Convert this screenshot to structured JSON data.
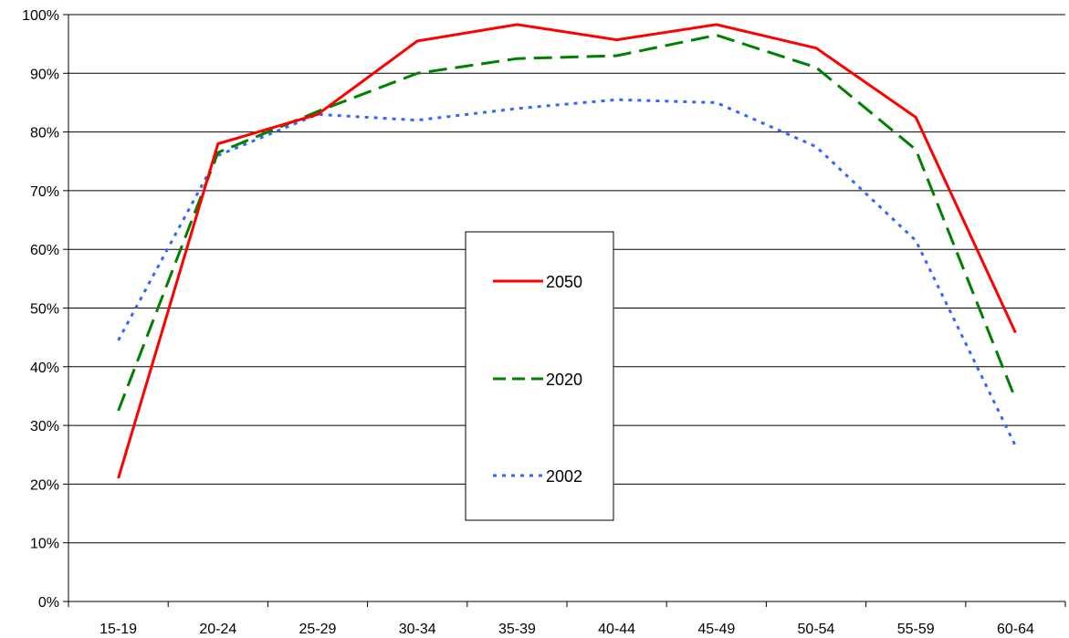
{
  "chart_data": {
    "type": "line",
    "title": "",
    "xlabel": "",
    "ylabel": "",
    "categories": [
      "15-19",
      "20-24",
      "25-29",
      "30-34",
      "35-39",
      "40-44",
      "45-49",
      "50-54",
      "55-59",
      "60-64"
    ],
    "ylim": [
      0,
      100
    ],
    "y_ticks": [
      0,
      10,
      20,
      30,
      40,
      50,
      60,
      70,
      80,
      90,
      100
    ],
    "y_tick_labels": [
      "0%",
      "10%",
      "20%",
      "30%",
      "40%",
      "50%",
      "60%",
      "70%",
      "80%",
      "90%",
      "100%"
    ],
    "grid": "horizontal",
    "legend_position": "center",
    "series": [
      {
        "name": "2050",
        "color": "#ff0000",
        "style": "solid",
        "values": [
          21,
          78,
          83,
          95.5,
          98.3,
          95.7,
          98.3,
          94.3,
          82.5,
          45.8
        ]
      },
      {
        "name": "2020",
        "color": "#008000",
        "style": "dashed",
        "values": [
          32.5,
          76.5,
          83.5,
          90,
          92.5,
          93,
          96.5,
          91,
          77,
          34.5
        ]
      },
      {
        "name": "2002",
        "color": "#3366ff",
        "style": "dotted",
        "values": [
          44.5,
          76,
          83,
          82,
          84,
          85.5,
          85,
          77.5,
          61.5,
          26.5
        ]
      }
    ]
  }
}
